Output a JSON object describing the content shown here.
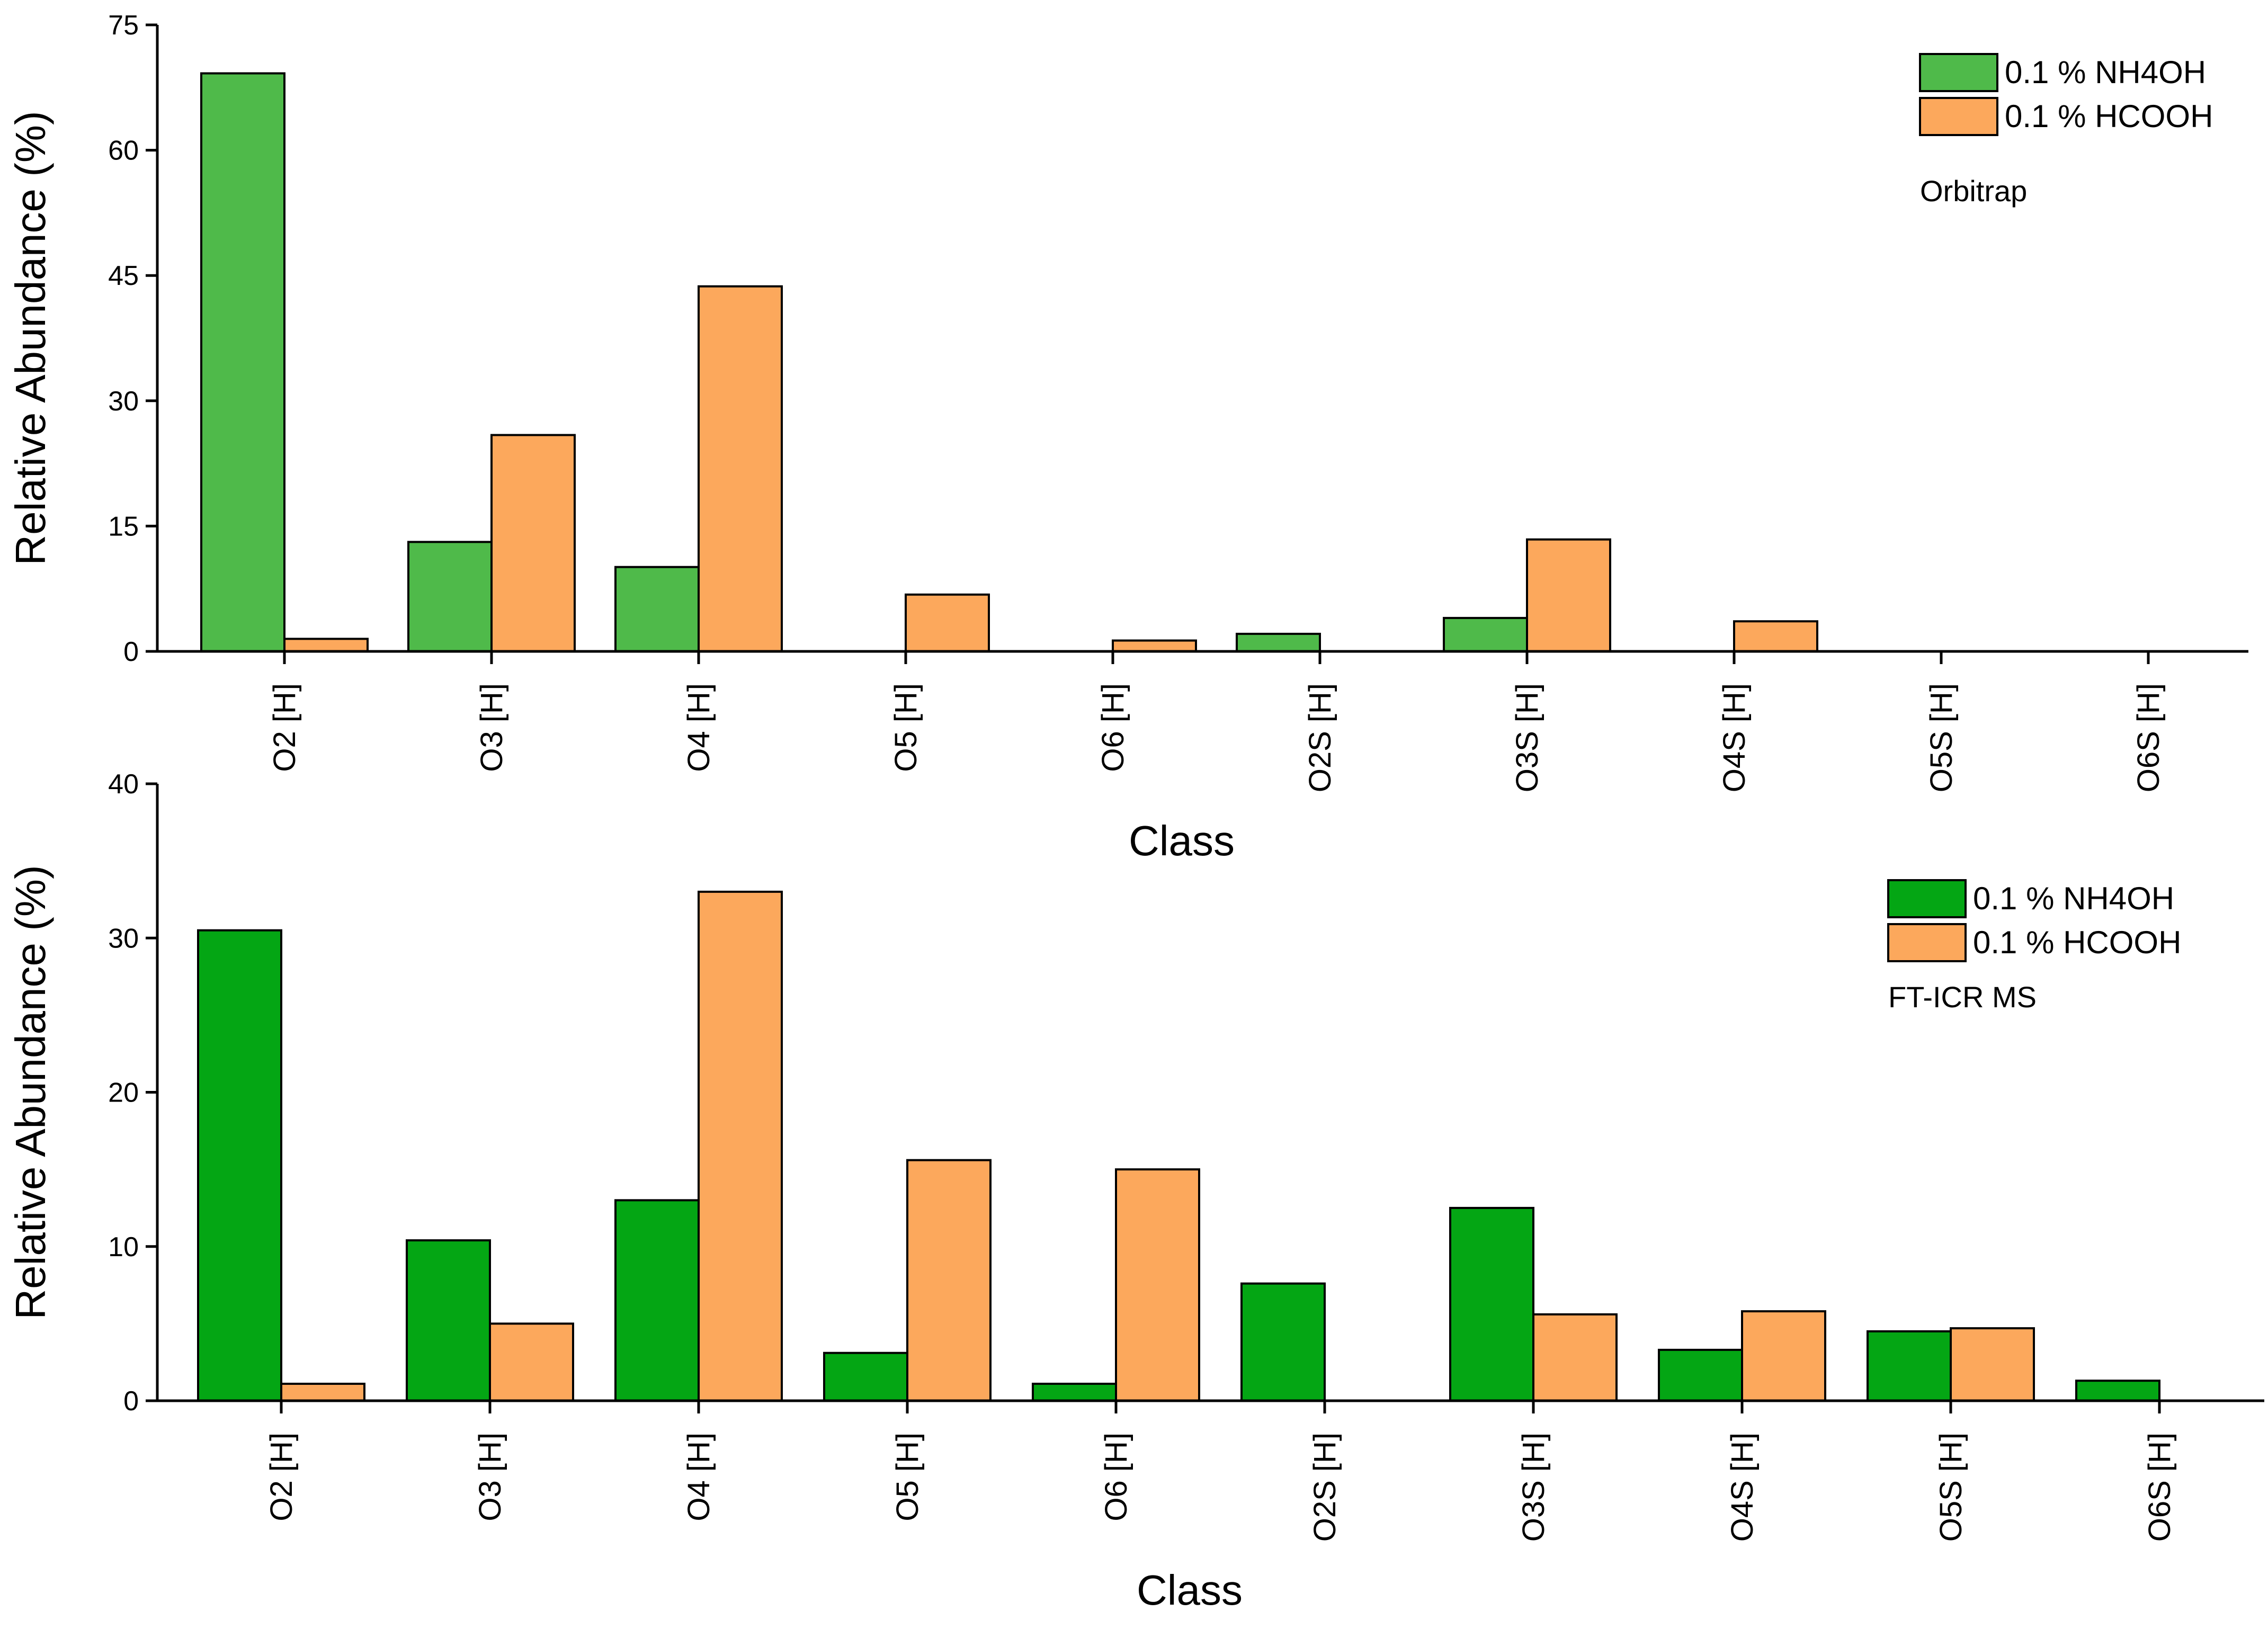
{
  "chart_data": [
    {
      "type": "bar",
      "instrument": "Orbitrap",
      "categories": [
        "O2 [H]",
        "O3 [H]",
        "O4 [H]",
        "O5 [H]",
        "O6 [H]",
        "O2S [H]",
        "O3S [H]",
        "O4S [H]",
        "O5S [H]",
        "O6S [H]"
      ],
      "series": [
        {
          "name": "0.1 % NH4OH",
          "color": "#4fba4a",
          "values": [
            69.2,
            13.1,
            10.1,
            0,
            0,
            2.1,
            4.0,
            0,
            0,
            0
          ]
        },
        {
          "name": "0.1 % HCOOH",
          "color": "#fca85c",
          "values": [
            1.5,
            25.9,
            43.7,
            6.8,
            1.3,
            0,
            13.4,
            3.6,
            0,
            0
          ]
        }
      ],
      "xlabel": "Class",
      "ylabel": "Relative Abundance (%)",
      "ylim": [
        0,
        75
      ],
      "yticks": [
        "0",
        "15",
        "30",
        "45",
        "60",
        "75"
      ],
      "legend_position": "top-right",
      "grid": false
    },
    {
      "type": "bar",
      "instrument": "FT-ICR MS",
      "categories": [
        "O2 [H]",
        "O3 [H]",
        "O4 [H]",
        "O5 [H]",
        "O6 [H]",
        "O2S [H]",
        "O3S [H]",
        "O4S [H]",
        "O5S [H]",
        "O6S [H]"
      ],
      "series": [
        {
          "name": "0.1 % NH4OH",
          "color": "#04a614",
          "values": [
            30.5,
            10.4,
            13.0,
            3.1,
            1.1,
            7.6,
            12.5,
            3.3,
            4.5,
            1.3
          ]
        },
        {
          "name": "0.1 % HCOOH",
          "color": "#fca85c",
          "values": [
            1.1,
            5.0,
            33.0,
            15.6,
            15.0,
            0,
            5.6,
            5.8,
            4.7,
            0
          ]
        }
      ],
      "xlabel": "Class",
      "ylabel": "Relative Abundance (%)",
      "ylim": [
        0,
        40
      ],
      "yticks": [
        "0",
        "10",
        "20",
        "30",
        "40"
      ],
      "legend_position": "top-right",
      "grid": false
    }
  ]
}
